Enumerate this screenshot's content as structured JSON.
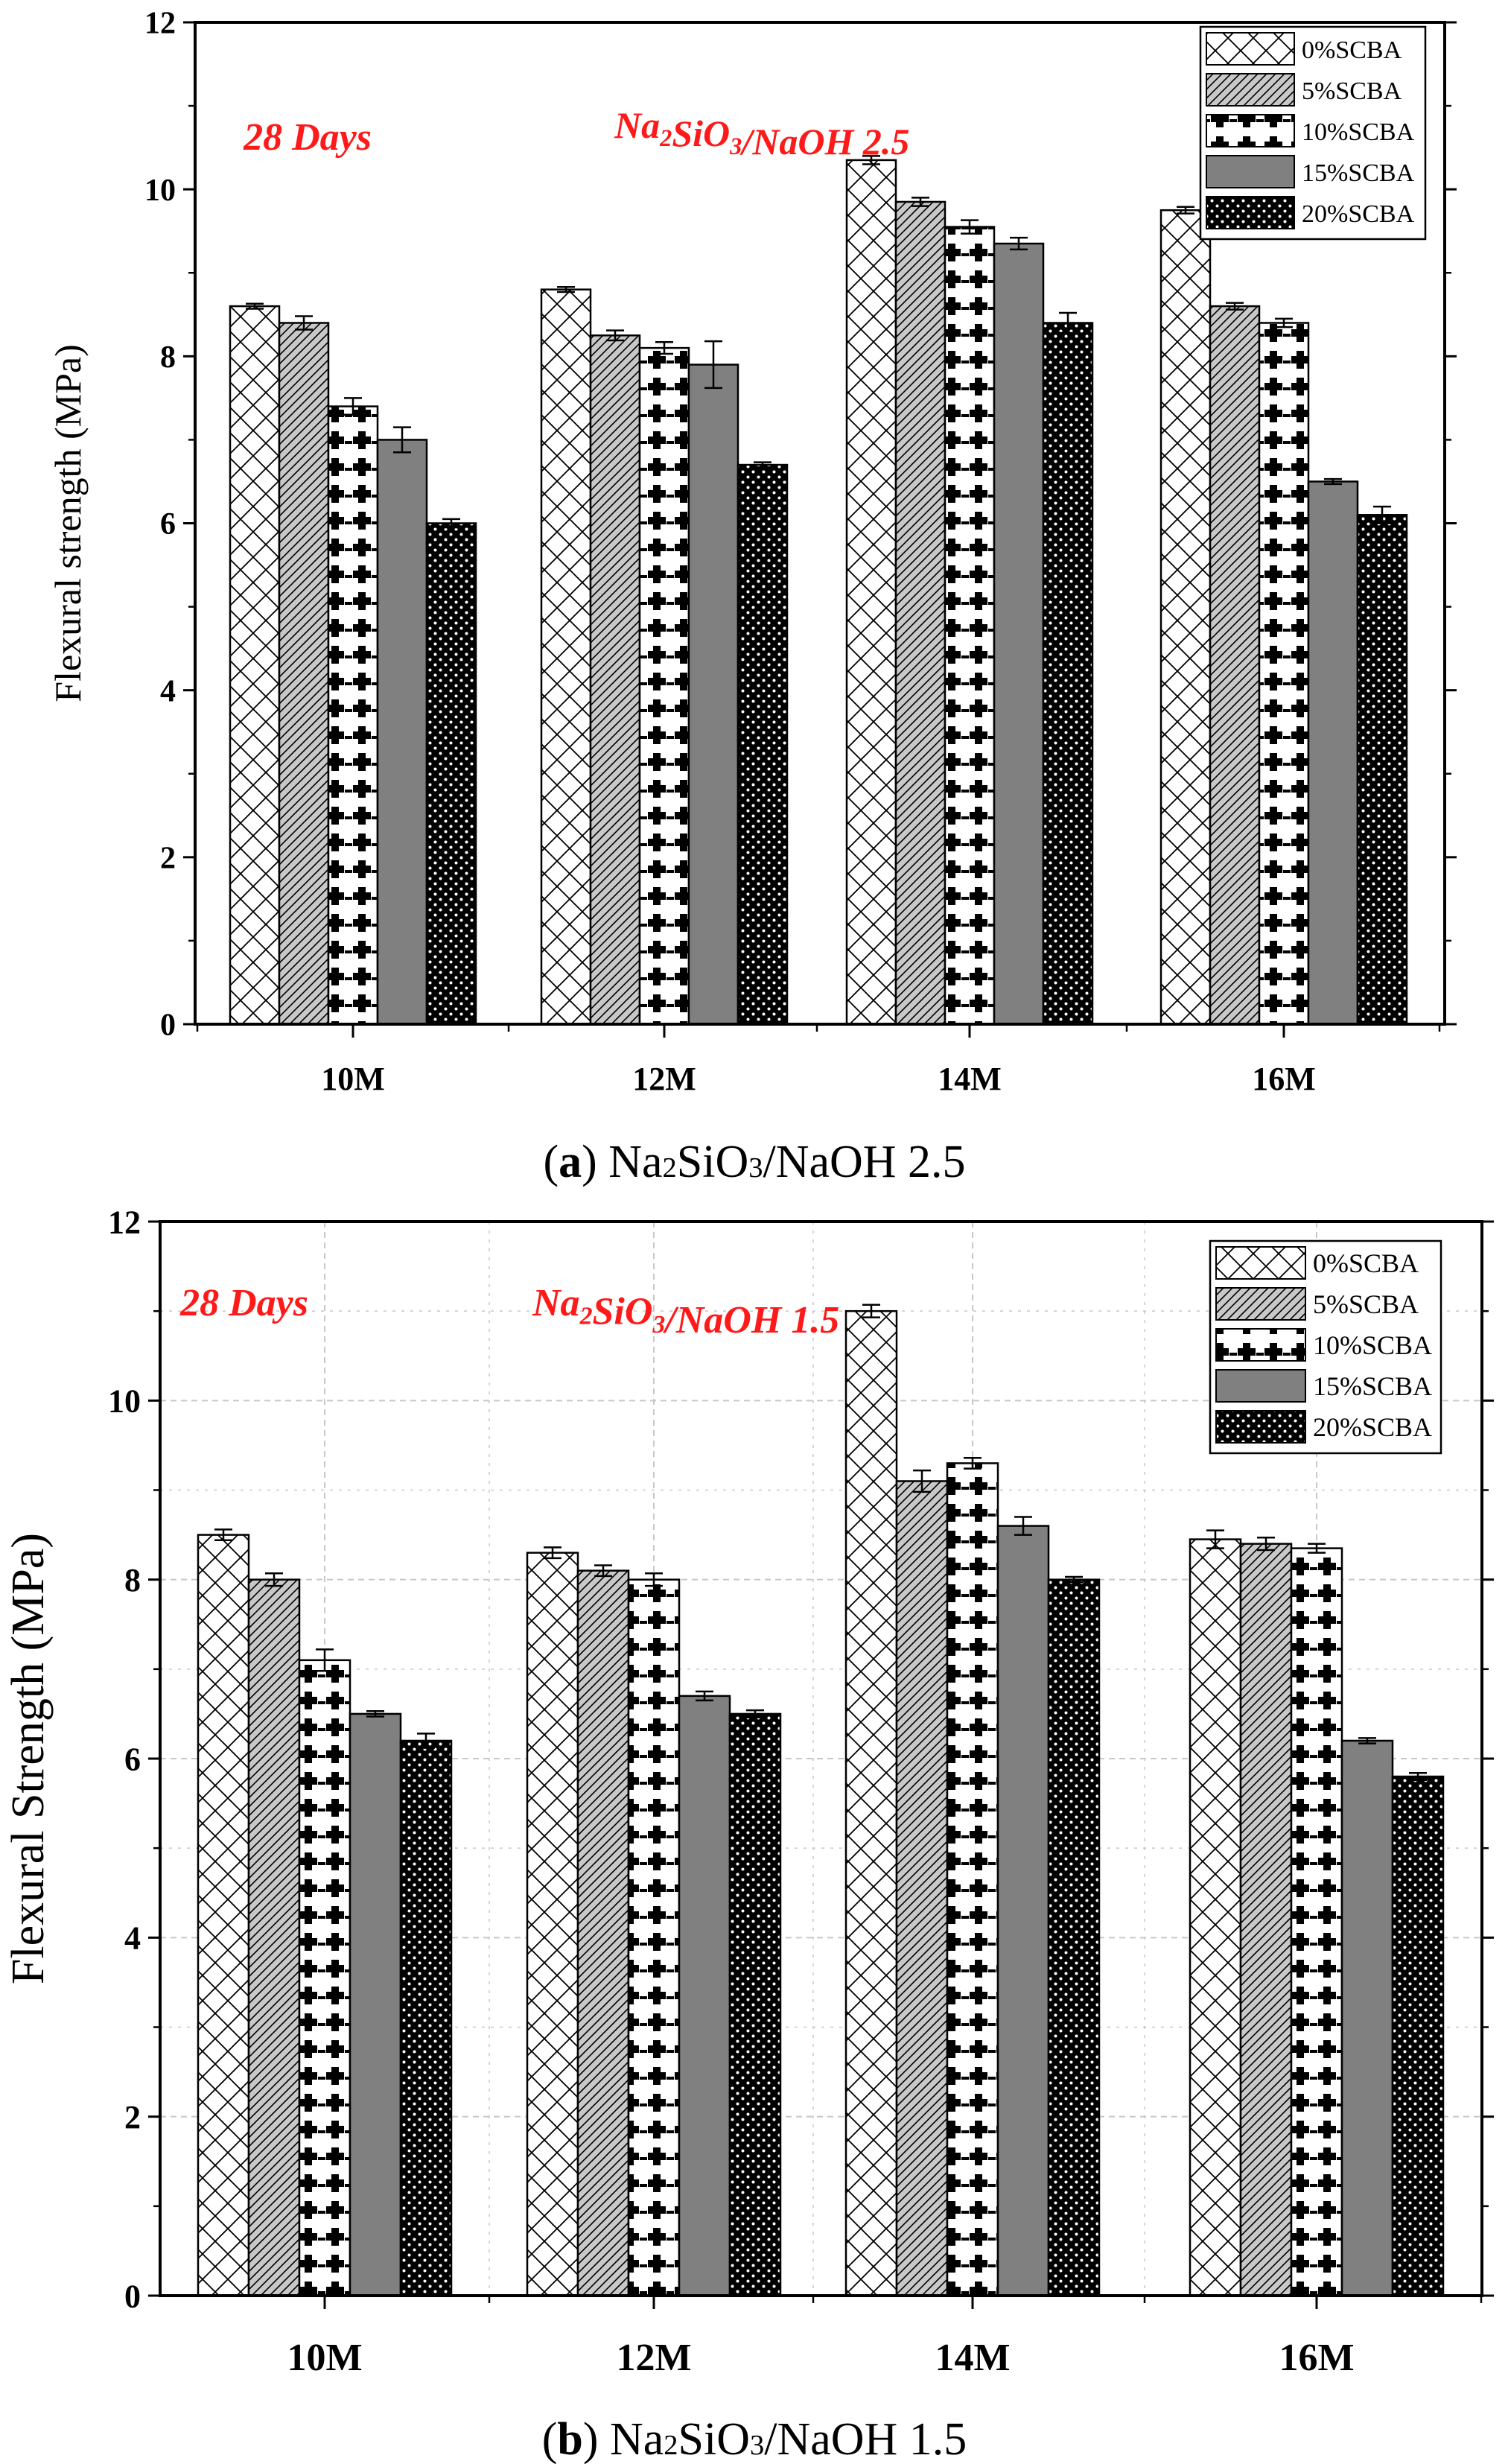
{
  "figure": {
    "panels": [
      {
        "id": "a",
        "caption_letter": "a",
        "caption_text": "Na2SiO3/NaOH 2.5",
        "annotation_days": "28 Days",
        "annotation_ratio": "Na2SiO3/NaOH 2.5",
        "ylabel": "Flexural strength (MPa)"
      },
      {
        "id": "b",
        "caption_letter": "b",
        "caption_text": "Na2SiO3/NaOH 1.5",
        "annotation_days": "28 Days",
        "annotation_ratio": "Na2SiO3/NaOH 1.5",
        "ylabel": "Flexural Strength (MPa)"
      }
    ]
  },
  "colors": {
    "annotation": "#ff1a1a",
    "axis": "#000000",
    "bar_dark": "#808080",
    "grid_b": "#c8c8c8"
  },
  "chart_data": [
    {
      "type": "bar",
      "title": "",
      "xlabel": "",
      "ylabel": "Flexural strength (MPa)",
      "categories": [
        "10M",
        "12M",
        "14M",
        "16M"
      ],
      "ylim": [
        0,
        12
      ],
      "yticks": [
        0,
        2,
        4,
        6,
        8,
        10,
        12
      ],
      "grid": false,
      "legend_position": "top-right",
      "series": [
        {
          "name": "0%SCBA",
          "pattern": "crosshatch",
          "values": [
            8.6,
            8.8,
            10.35,
            9.75
          ],
          "errors": [
            0.03,
            0.03,
            0.05,
            0.04
          ]
        },
        {
          "name": "5%SCBA",
          "pattern": "diagonal",
          "values": [
            8.4,
            8.25,
            9.85,
            8.6
          ],
          "errors": [
            0.08,
            0.06,
            0.05,
            0.04
          ]
        },
        {
          "name": "10%SCBA",
          "pattern": "crosses",
          "values": [
            7.4,
            8.1,
            9.55,
            8.4
          ],
          "errors": [
            0.1,
            0.07,
            0.08,
            0.05
          ]
        },
        {
          "name": "15%SCBA",
          "pattern": "solid-gray",
          "values": [
            7.0,
            7.9,
            9.35,
            6.5
          ],
          "errors": [
            0.15,
            0.28,
            0.07,
            0.03
          ]
        },
        {
          "name": "20%SCBA",
          "pattern": "dots",
          "values": [
            6.0,
            6.7,
            8.4,
            6.1
          ],
          "errors": [
            0.05,
            0.03,
            0.12,
            0.1
          ]
        }
      ]
    },
    {
      "type": "bar",
      "title": "",
      "xlabel": "",
      "ylabel": "Flexural Strength (MPa)",
      "categories": [
        "10M",
        "12M",
        "14M",
        "16M"
      ],
      "ylim": [
        0,
        12
      ],
      "yticks": [
        0,
        2,
        4,
        6,
        8,
        10,
        12
      ],
      "grid": true,
      "legend_position": "top-right",
      "series": [
        {
          "name": "0%SCBA",
          "pattern": "crosshatch",
          "values": [
            8.5,
            8.3,
            11.0,
            8.45
          ],
          "errors": [
            0.06,
            0.06,
            0.07,
            0.1
          ]
        },
        {
          "name": "5%SCBA",
          "pattern": "diagonal",
          "values": [
            8.0,
            8.1,
            9.1,
            8.4
          ],
          "errors": [
            0.07,
            0.06,
            0.12,
            0.07
          ]
        },
        {
          "name": "10%SCBA",
          "pattern": "crosses",
          "values": [
            7.1,
            8.0,
            9.3,
            8.35
          ],
          "errors": [
            0.12,
            0.07,
            0.06,
            0.05
          ]
        },
        {
          "name": "15%SCBA",
          "pattern": "solid-gray",
          "values": [
            6.5,
            6.7,
            8.6,
            6.2
          ],
          "errors": [
            0.03,
            0.05,
            0.1,
            0.03
          ]
        },
        {
          "name": "20%SCBA",
          "pattern": "dots",
          "values": [
            6.2,
            6.5,
            8.0,
            5.8
          ],
          "errors": [
            0.08,
            0.04,
            0.03,
            0.04
          ]
        }
      ]
    }
  ]
}
